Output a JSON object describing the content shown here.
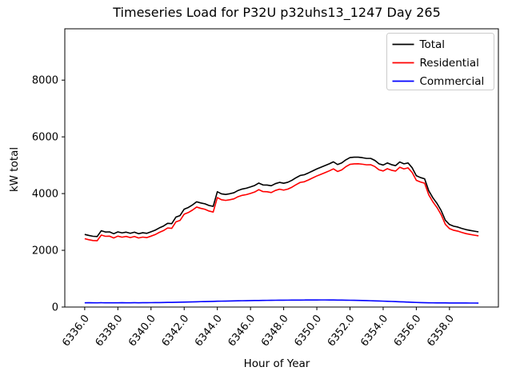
{
  "chart_data": {
    "type": "line",
    "title": "Timeseries Load for P32U p32uhs13_1247  Day 265",
    "xlabel": "Hour of Year",
    "ylabel": "kW total",
    "grid": false,
    "legend_position": "upper right",
    "xlim": [
      6334.8,
      6360.95
    ],
    "ylim": [
      0,
      9810
    ],
    "x_ticks": [
      6336,
      6338,
      6340,
      6342,
      6344,
      6346,
      6348,
      6350,
      6352,
      6354,
      6356,
      6358
    ],
    "x_tick_labels": [
      "6336.0",
      "6338.0",
      "6340.0",
      "6342.0",
      "6344.0",
      "6346.0",
      "6348.0",
      "6350.0",
      "6352.0",
      "6354.0",
      "6356.0",
      "6358.0"
    ],
    "y_ticks": [
      0,
      2000,
      4000,
      6000,
      8000
    ],
    "y_tick_labels": [
      "0",
      "2000",
      "4000",
      "6000",
      "8000"
    ],
    "x": [
      6336,
      6336.25,
      6336.5,
      6336.75,
      6337,
      6337.25,
      6337.5,
      6337.75,
      6338,
      6338.25,
      6338.5,
      6338.75,
      6339,
      6339.25,
      6339.5,
      6339.75,
      6340,
      6340.25,
      6340.5,
      6340.75,
      6341,
      6341.25,
      6341.5,
      6341.75,
      6342,
      6342.25,
      6342.5,
      6342.75,
      6343,
      6343.25,
      6343.5,
      6343.75,
      6344,
      6344.25,
      6344.5,
      6344.75,
      6345,
      6345.25,
      6345.5,
      6345.75,
      6346,
      6346.25,
      6346.5,
      6346.75,
      6347,
      6347.25,
      6347.5,
      6347.75,
      6348,
      6348.25,
      6348.5,
      6348.75,
      6349,
      6349.25,
      6349.5,
      6349.75,
      6350,
      6350.25,
      6350.5,
      6350.75,
      6351,
      6351.25,
      6351.5,
      6351.75,
      6352,
      6352.25,
      6352.5,
      6352.75,
      6353,
      6353.25,
      6353.5,
      6353.75,
      6354,
      6354.25,
      6354.5,
      6354.75,
      6355,
      6355.25,
      6355.5,
      6355.75,
      6356,
      6356.25,
      6356.5,
      6356.75,
      6357,
      6357.25,
      6357.5,
      6357.75,
      6358,
      6358.25,
      6358.5,
      6358.75,
      6359,
      6359.25,
      6359.5,
      6359.75
    ],
    "series": [
      {
        "name": "Total",
        "color": "#000000",
        "values": [
          2560,
          2525,
          2495,
          2485,
          2690,
          2645,
          2650,
          2585,
          2650,
          2615,
          2640,
          2600,
          2640,
          2585,
          2620,
          2600,
          2655,
          2710,
          2790,
          2855,
          2950,
          2940,
          3170,
          3225,
          3450,
          3510,
          3600,
          3710,
          3670,
          3640,
          3580,
          3550,
          4065,
          3990,
          3970,
          3995,
          4030,
          4110,
          4160,
          4190,
          4235,
          4285,
          4370,
          4305,
          4300,
          4275,
          4350,
          4395,
          4365,
          4400,
          4470,
          4560,
          4640,
          4665,
          4730,
          4800,
          4870,
          4930,
          4990,
          5050,
          5120,
          5025,
          5080,
          5190,
          5270,
          5285,
          5285,
          5265,
          5240,
          5240,
          5170,
          5050,
          5005,
          5080,
          5020,
          4985,
          5115,
          5050,
          5080,
          4910,
          4630,
          4565,
          4520,
          4100,
          3850,
          3650,
          3400,
          3060,
          2910,
          2850,
          2820,
          2770,
          2730,
          2700,
          2675,
          2650
        ]
      },
      {
        "name": "Residential",
        "color": "#ff0000",
        "values": [
          2410,
          2373,
          2345,
          2337,
          2538,
          2495,
          2499,
          2436,
          2500,
          2463,
          2490,
          2449,
          2488,
          2435,
          2467,
          2448,
          2500,
          2554,
          2632,
          2695,
          2787,
          2775,
          3002,
          3055,
          3275,
          3332,
          3418,
          3525,
          3480,
          3447,
          3384,
          3350,
          3860,
          3782,
          3760,
          3782,
          3814,
          3891,
          3938,
          3965,
          4007,
          4055,
          4138,
          4071,
          4064,
          4037,
          4110,
          4154,
          4123,
          4157,
          4226,
          4315,
          4394,
          4418,
          4482,
          4552,
          4621,
          4680,
          4740,
          4801,
          4872,
          4779,
          4836,
          4948,
          5030,
          5048,
          5051,
          5035,
          5014,
          5018,
          4952,
          4837,
          4797,
          4877,
          4823,
          4793,
          4929,
          4870,
          4906,
          4742,
          4468,
          4408,
          4367,
          3955,
          3706,
          3507,
          3254,
          2915,
          2766,
          2707,
          2677,
          2628,
          2588,
          2559,
          2534,
          2510
        ]
      },
      {
        "name": "Commercial",
        "color": "#0000ff",
        "values": [
          150,
          152,
          150,
          148,
          152,
          150,
          151,
          149,
          150,
          152,
          150,
          151,
          152,
          150,
          153,
          152,
          155,
          156,
          158,
          160,
          163,
          165,
          168,
          170,
          175,
          178,
          182,
          185,
          190,
          193,
          196,
          200,
          205,
          208,
          210,
          213,
          216,
          219,
          222,
          225,
          228,
          230,
          232,
          234,
          236,
          238,
          240,
          241,
          242,
          243,
          244,
          245,
          246,
          247,
          248,
          248,
          249,
          250,
          250,
          249,
          248,
          246,
          244,
          242,
          240,
          237,
          234,
          230,
          226,
          222,
          218,
          213,
          208,
          203,
          197,
          192,
          186,
          180,
          174,
          168,
          162,
          157,
          153,
          150,
          148,
          147,
          146,
          145,
          144,
          143,
          143,
          142,
          142,
          141,
          141,
          140
        ]
      }
    ],
    "axis_color": "#000000",
    "background_color": "#ffffff",
    "legend_border_color": "#cccccc"
  }
}
